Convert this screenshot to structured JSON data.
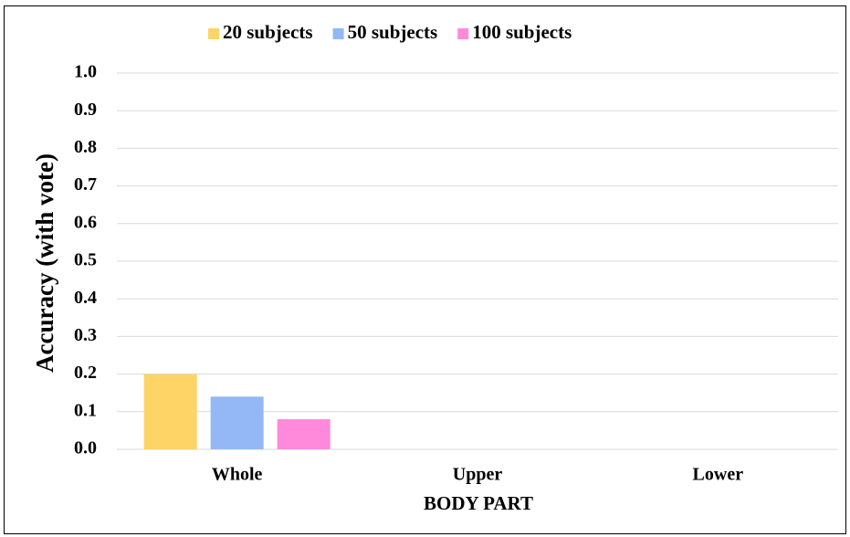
{
  "chart_data": {
    "type": "bar",
    "y_label": "Accuracy (with vote)",
    "x_label": "BODY PART",
    "categories": [
      "Whole",
      "Upper",
      "Lower"
    ],
    "series": [
      {
        "name": "20 subjects",
        "color": "#ffd466",
        "values": [
          0.2,
          null,
          null
        ]
      },
      {
        "name": "50 subjects",
        "color": "#94b8f5",
        "values": [
          0.14,
          null,
          null
        ]
      },
      {
        "name": "100 subjects",
        "color": "#ff8adb",
        "values": [
          0.08,
          null,
          null
        ]
      }
    ],
    "ylim": [
      0,
      1
    ],
    "yticks": [
      {
        "value": 0,
        "label": "0.0"
      },
      0.1,
      0.2,
      0.3,
      0.4,
      0.5,
      0.6,
      0.7,
      0.8,
      0.9,
      {
        "value": 1,
        "label": "1.0"
      }
    ],
    "grid": true,
    "legend": "top"
  }
}
